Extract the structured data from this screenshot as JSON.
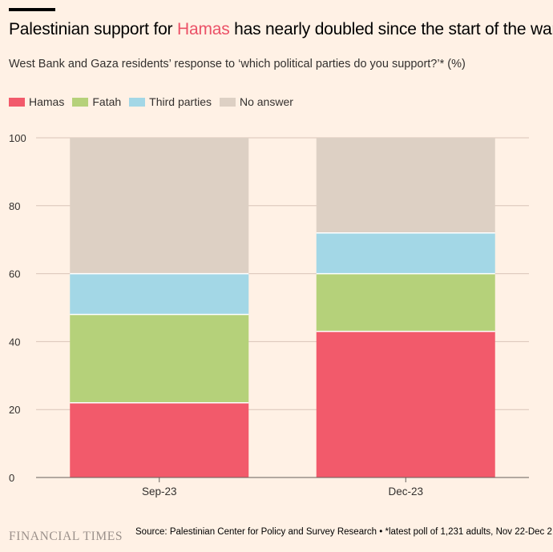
{
  "header": {
    "title_prefix": "Palestinian support for ",
    "title_highlight": "Hamas",
    "title_suffix": " has nearly doubled since the start of the war",
    "subtitle": "West Bank and Gaza residents’ response to ‘which political parties do you support?’* (%)"
  },
  "colors": {
    "hamas": "#f25a6b",
    "fatah": "#b5d17a",
    "third": "#a3d7e6",
    "none": "#ddd0c4",
    "grid": "#d9c4b8",
    "axis": "#66605c",
    "background": "#fff1e5"
  },
  "legend": [
    {
      "label": "Hamas",
      "color": "#f25a6b"
    },
    {
      "label": "Fatah",
      "color": "#b5d17a"
    },
    {
      "label": "Third parties",
      "color": "#a3d7e6"
    },
    {
      "label": "No answer",
      "color": "#ddd0c4"
    }
  ],
  "chart_data": {
    "type": "bar",
    "stacked": true,
    "title": "Palestinian support for Hamas has nearly doubled since the start of the war",
    "subtitle": "West Bank and Gaza residents’ response to ‘which political parties do you support?’* (%)",
    "categories": [
      "Sep-23",
      "Dec-23"
    ],
    "series": [
      {
        "name": "Hamas",
        "values": [
          22,
          43
        ]
      },
      {
        "name": "Fatah",
        "values": [
          26,
          17
        ]
      },
      {
        "name": "Third parties",
        "values": [
          12,
          12
        ]
      },
      {
        "name": "No answer",
        "values": [
          40,
          28
        ]
      }
    ],
    "yticks": [
      0,
      20,
      40,
      60,
      80,
      100
    ],
    "ylim": [
      0,
      100
    ],
    "xlabel": "",
    "ylabel": "",
    "legend_position": "top-left",
    "grid": true
  },
  "footer": {
    "brand": "FINANCIAL TIMES",
    "source": "Source: Palestinian Center for Policy and Survey Research • *latest poll of 1,231 adults, Nov 22-Dec 2"
  }
}
